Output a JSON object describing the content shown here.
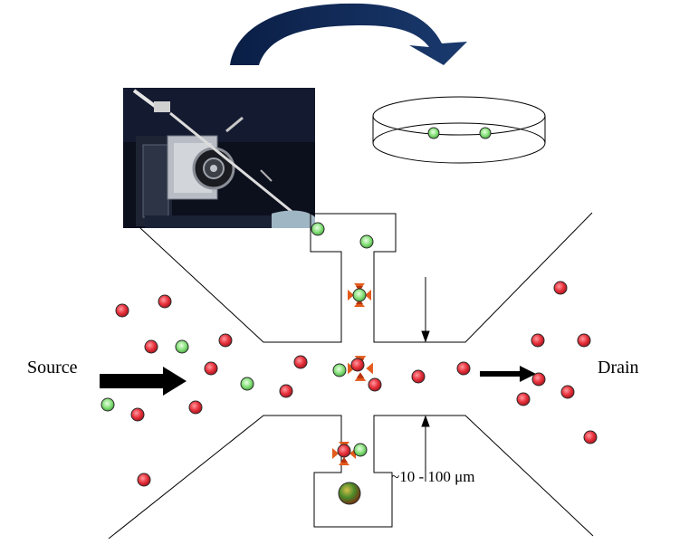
{
  "labels": {
    "source": "Source",
    "drain": "Drain",
    "dimension": "~10 - 100 μm"
  },
  "colors": {
    "red_cell": "#e8323c",
    "green_cell": "#86e07a",
    "cell_outline": "#2a2a2a",
    "big_arrow": "#0f2a55",
    "trap_marker": "#e25a1c"
  },
  "icons": {
    "photo": "micromanipulator-photo",
    "dish": "petri-dish-icon",
    "cycle_arrow": "curved-transfer-arrow-icon",
    "trap": "trap-marker-icon"
  }
}
